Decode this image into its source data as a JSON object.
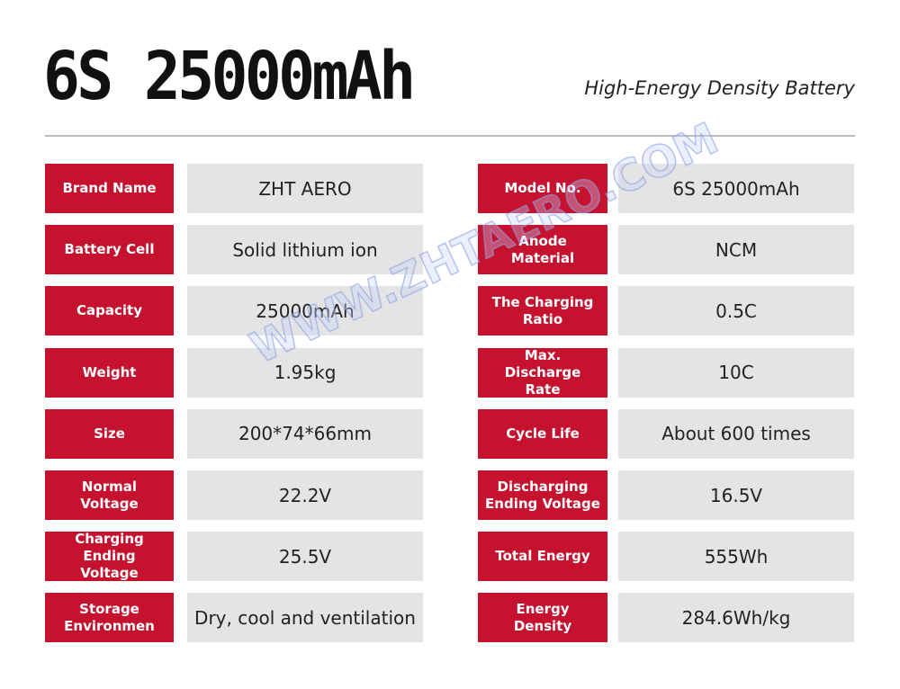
{
  "header": {
    "title": "6S 25000mAh",
    "subtitle": "High-Energy Density Battery"
  },
  "table": {
    "left": [
      [
        "Brand Name",
        "ZHT AERO"
      ],
      [
        "Battery Cell",
        "Solid lithium ion"
      ],
      [
        "Capacity",
        "25000mAh"
      ],
      [
        "Weight",
        "1.95kg"
      ],
      [
        "Size",
        "200*74*66mm"
      ],
      [
        "Normal Voltage",
        "22.2V"
      ],
      [
        "Charging Ending Voltage",
        "25.5V"
      ],
      [
        "Storage Environmen",
        "Dry, cool and ventilation"
      ]
    ],
    "right": [
      [
        "Model No.",
        "6S 25000mAh"
      ],
      [
        "Anode Material",
        "NCM"
      ],
      [
        "The Charging Ratio",
        "0.5C"
      ],
      [
        "Max. Discharge Rate",
        "10C"
      ],
      [
        "Cycle Life",
        "About 600 times"
      ],
      [
        "Discharging Ending Voltage",
        "16.5V"
      ],
      [
        "Total Energy",
        "555Wh"
      ],
      [
        "Energy Density",
        "284.6Wh/kg"
      ]
    ]
  },
  "watermark": "WWW.ZHTAERO.COM"
}
